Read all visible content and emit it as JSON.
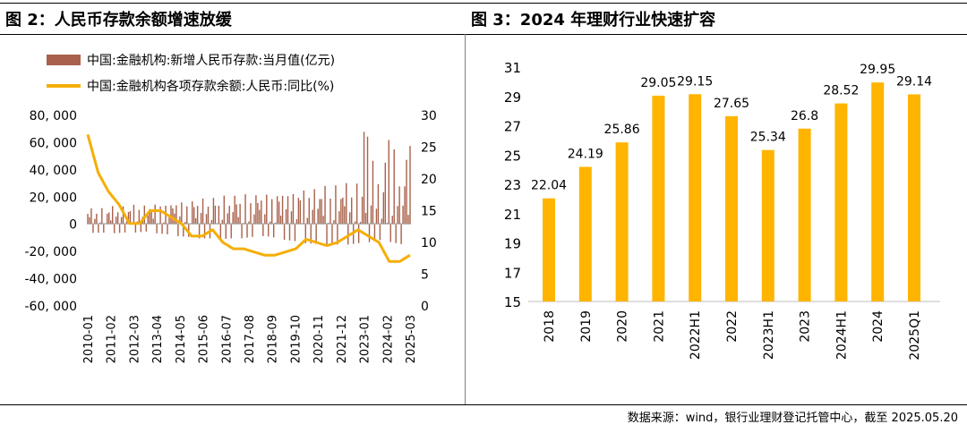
{
  "colors": {
    "bar_brown": "#a9614b",
    "line_orange": "#f5ae06",
    "bar_orange": "#ffb400"
  },
  "left_title": "图 2：人民币存款余额增速放缓",
  "right_title": "图 3：2024 年理财行业快速扩容",
  "source": "数据来源：wind，银行业理财登记托管中心，截至 2025.05.20",
  "chart_data": [
    {
      "type": "bar+line",
      "title": "图 2：人民币存款余额增速放缓",
      "series": [
        {
          "name": "中国:金融机构:新增人民币存款:当月值(亿元)",
          "type": "bar",
          "axis": "left"
        },
        {
          "name": "中国:金融机构各项存款余额:人民币:同比(%)",
          "type": "line",
          "axis": "right",
          "x": [
            "2010-01",
            "2010-06",
            "2011-01",
            "2011-06",
            "2012-01",
            "2012-06",
            "2013-01",
            "2013-06",
            "2014-01",
            "2014-06",
            "2015-01",
            "2015-06",
            "2016-01",
            "2016-06",
            "2017-01",
            "2017-06",
            "2018-01",
            "2018-06",
            "2019-01",
            "2019-06",
            "2020-01",
            "2020-06",
            "2021-01",
            "2021-06",
            "2022-01",
            "2022-06",
            "2023-01",
            "2023-06",
            "2024-01",
            "2024-06",
            "2025-01",
            "2025-03"
          ],
          "values": [
            27,
            21,
            18,
            16,
            13,
            13,
            15,
            15,
            14,
            13,
            11,
            11,
            12,
            10,
            9,
            9,
            8.5,
            8,
            8,
            8.5,
            9,
            10.5,
            10,
            9.5,
            10,
            11,
            12,
            11,
            10,
            7,
            7,
            8
          ]
        }
      ],
      "x_ticks": [
        "2010-01",
        "2011-02",
        "2012-03",
        "2013-04",
        "2014-05",
        "2015-06",
        "2016-07",
        "2017-08",
        "2018-09",
        "2019-10",
        "2020-11",
        "2021-12",
        "2023-01",
        "2024-02",
        "2025-03"
      ],
      "y_left_ticks": [
        "80, 000",
        "60, 000",
        "40, 000",
        "20, 000",
        "0",
        "-20, 000",
        "-40, 000",
        "-60, 000"
      ],
      "y_right_ticks": [
        "30",
        "25",
        "20",
        "15",
        "10",
        "5",
        "0"
      ],
      "ylim_left": [
        -60000,
        80000
      ],
      "ylim_right": [
        0,
        30
      ],
      "legend": "top"
    },
    {
      "type": "bar",
      "title": "图 3：2024 年理财行业快速扩容",
      "categories": [
        "2018",
        "2019",
        "2020",
        "2021",
        "2022H1",
        "2022",
        "2023H1",
        "2023",
        "2024H1",
        "2024",
        "2025Q1"
      ],
      "values": [
        22.04,
        24.19,
        25.86,
        29.05,
        29.15,
        27.65,
        25.34,
        26.8,
        28.52,
        29.95,
        29.14
      ],
      "value_labels": [
        "22.04",
        "24.19",
        "25.86",
        "29.05",
        "29.15",
        "27.65",
        "25.34",
        "26.8",
        "28.52",
        "29.95",
        "29.14"
      ],
      "y_ticks": [
        "31",
        "29",
        "27",
        "25",
        "23",
        "21",
        "19",
        "17",
        "15"
      ],
      "ylim": [
        15,
        31
      ]
    }
  ]
}
